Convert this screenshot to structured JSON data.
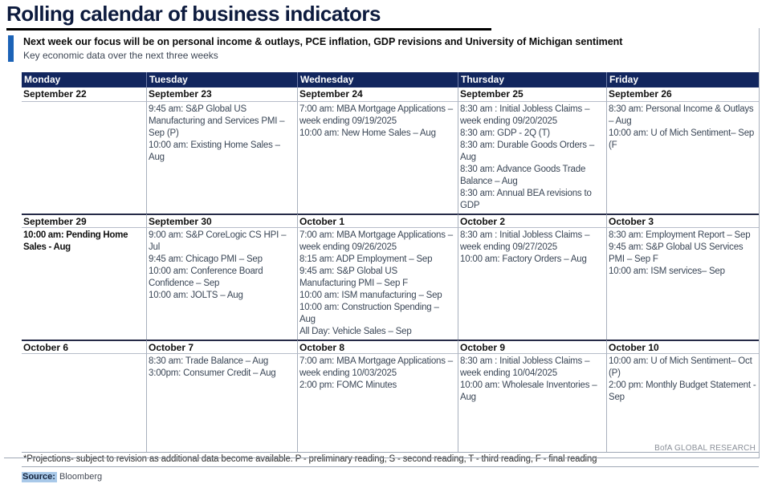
{
  "page": {
    "title": "Rolling calendar of business indicators",
    "subtitle_bold": "Next week our focus will be on personal income & outlays, PCE inflation, GDP revisions and University of Michigan sentiment",
    "subtitle_regular": "Key economic data over the next three weeks",
    "footnote": "*Projections- subject to revision as additional data become available. P - preliminary reading, S - second reading, T - third reading, F - final reading",
    "source_label": "Source:",
    "source_value": "Bloomberg",
    "brand": "BofA GLOBAL RESEARCH"
  },
  "colors": {
    "header_navy": "#12265e",
    "title_navy": "#0d1b3e",
    "accent_blue": "#1c63b7",
    "source_highlight": "#a9c9e9",
    "grid_line": "#a8b0bd",
    "week_divider": "#252a47",
    "event_text": "#3a4656",
    "brand_gray": "#8a8f98"
  },
  "calendar": {
    "headers": [
      "Monday",
      "Tuesday",
      "Wednesday",
      "Thursday",
      "Friday"
    ],
    "weeks": [
      {
        "dates": [
          "September 22",
          "September 23",
          "September 24",
          "September 25",
          "September 26"
        ],
        "events": [
          [],
          [
            "9:45 am: S&P Global US Manufacturing and Services PMI – Sep (P)",
            "10:00 am: Existing Home Sales – Aug"
          ],
          [
            "7:00 am: MBA Mortgage Applications – week ending 09/19/2025",
            "10:00 am: New Home Sales – Aug"
          ],
          [
            "8:30 am : Initial Jobless Claims – week ending 09/20/2025",
            "8:30 am: GDP - 2Q (T)",
            "8:30 am: Durable Goods Orders – Aug",
            "8:30 am: Advance Goods Trade Balance – Aug",
            "8:30 am: Annual BEA revisions to GDP"
          ],
          [
            "8:30 am: Personal Income & Outlays – Aug",
            "10:00 am: U of Mich Sentiment– Sep (F"
          ]
        ]
      },
      {
        "dates": [
          "September 29",
          "September 30",
          "October 1",
          "October 2",
          "October 3"
        ],
        "events": [
          [
            "10:00 am: Pending Home Sales - Aug"
          ],
          [
            "9:00 am: S&P CoreLogic CS HPI – Jul",
            "9:45 am: Chicago PMI – Sep",
            "10:00 am: Conference Board Confidence – Sep",
            "10:00 am: JOLTS – Aug"
          ],
          [
            "7:00 am: MBA Mortgage Applications – week ending 09/26/2025",
            "8:15 am: ADP Employment – Sep",
            "9:45 am: S&P Global US Manufacturing PMI – Sep F",
            "10:00 am: ISM manufacturing – Sep",
            "10:00 am: Construction Spending – Aug",
            "All Day: Vehicle Sales – Sep"
          ],
          [
            "8:30 am : Initial Jobless Claims – week ending 09/27/2025",
            "10:00 am: Factory Orders – Aug"
          ],
          [
            "8:30 am: Employment Report – Sep",
            "9:45 am: S&P Global US Services PMI – Sep F",
            "10:00 am: ISM services– Sep"
          ]
        ]
      },
      {
        "dates": [
          "October 6",
          "October 7",
          "October 8",
          "October 9",
          "October 10"
        ],
        "events": [
          [],
          [
            "8:30 am: Trade Balance – Aug",
            "3:00pm: Consumer Credit – Aug"
          ],
          [
            "7:00 am: MBA Mortgage Applications – week ending 10/03/2025",
            "2:00 pm: FOMC Minutes"
          ],
          [
            "8:30 am : Initial Jobless Claims – week ending 10/04/2025",
            "10:00 am: Wholesale Inventories – Aug"
          ],
          [
            "10:00 am: U of Mich Sentiment– Oct (P)",
            "2:00 pm: Monthly Budget Statement - Sep"
          ]
        ]
      }
    ]
  }
}
